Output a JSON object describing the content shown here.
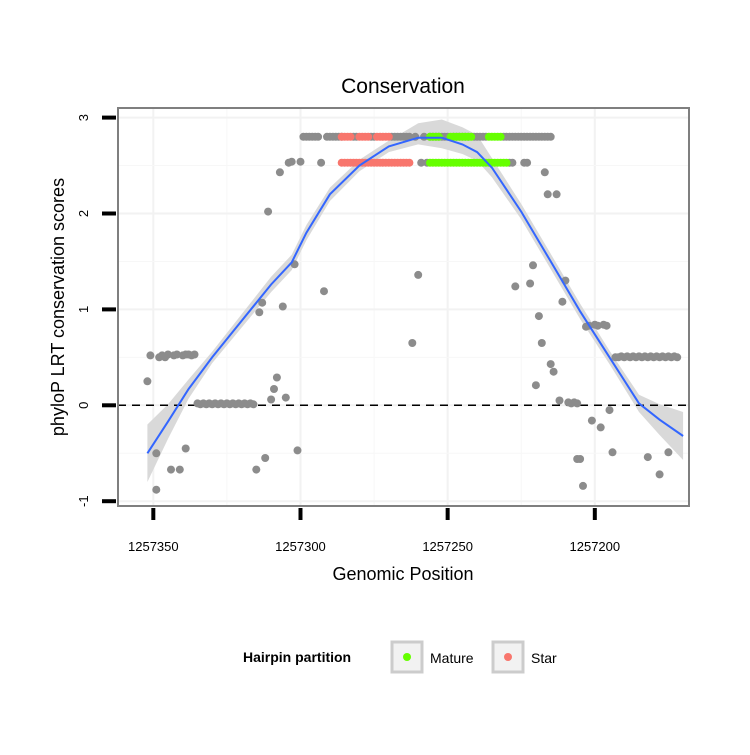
{
  "chart_data": {
    "type": "scatter",
    "title": "Conservation",
    "xlabel": "Genomic Position",
    "ylabel": "phyloP LRT conservation scores",
    "x_reversed": true,
    "xlim": [
      1257362,
      1257168
    ],
    "ylim": [
      -1.05,
      3.1
    ],
    "x_ticks": [
      1257350,
      1257300,
      1257250,
      1257200
    ],
    "x_tick_labels": [
      "1257350",
      "1257300",
      "1257250",
      "1257200"
    ],
    "y_ticks": [
      -1,
      0,
      1,
      2,
      3
    ],
    "y_tick_labels": [
      "-1",
      "0",
      "1",
      "2",
      "3"
    ],
    "grid": true,
    "reference_line": {
      "y": 0,
      "style": "dashed"
    },
    "legend": {
      "title": "Hairpin partition",
      "position": "bottom",
      "entries": [
        {
          "label": "Mature",
          "color": "#66ff00"
        },
        {
          "label": "Star",
          "color": "#f8766d"
        }
      ]
    },
    "colors": {
      "other": "#8c8c8c",
      "mature": "#66ff00",
      "star": "#f8766d",
      "smooth": "#3366ff",
      "ribbon": "#d9d9d9",
      "panel_border": "#7f7f7f"
    },
    "series": [
      {
        "key": "other",
        "points": [
          [
            1257352,
            0.25
          ],
          [
            1257351,
            0.52
          ],
          [
            1257349,
            -0.88
          ],
          [
            1257349,
            -0.5
          ],
          [
            1257348,
            0.5
          ],
          [
            1257347,
            0.52
          ],
          [
            1257346,
            0.5
          ],
          [
            1257345,
            0.53
          ],
          [
            1257344,
            -0.67
          ],
          [
            1257343,
            0.52
          ],
          [
            1257342,
            0.53
          ],
          [
            1257341,
            -0.67
          ],
          [
            1257340,
            0.52
          ],
          [
            1257339,
            0.53
          ],
          [
            1257338,
            0.53
          ],
          [
            1257339,
            -0.45
          ],
          [
            1257337,
            0.52
          ],
          [
            1257336,
            0.53
          ],
          [
            1257335,
            0.02
          ],
          [
            1257334,
            0.01
          ],
          [
            1257333,
            0.02
          ],
          [
            1257332,
            0.01
          ],
          [
            1257331,
            0.02
          ],
          [
            1257330,
            0.01
          ],
          [
            1257329,
            0.02
          ],
          [
            1257328,
            0.01
          ],
          [
            1257327,
            0.02
          ],
          [
            1257326,
            0.01
          ],
          [
            1257325,
            0.02
          ],
          [
            1257324,
            0.01
          ],
          [
            1257323,
            0.02
          ],
          [
            1257322,
            0.01
          ],
          [
            1257321,
            0.02
          ],
          [
            1257320,
            0.01
          ],
          [
            1257319,
            0.02
          ],
          [
            1257318,
            0.01
          ],
          [
            1257317,
            0.02
          ],
          [
            1257316,
            0.01
          ],
          [
            1257315,
            -0.67
          ],
          [
            1257314,
            0.97
          ],
          [
            1257313,
            1.07
          ],
          [
            1257312,
            -0.55
          ],
          [
            1257311,
            2.02
          ],
          [
            1257310,
            0.06
          ],
          [
            1257309,
            0.17
          ],
          [
            1257308,
            0.29
          ],
          [
            1257307,
            2.43
          ],
          [
            1257306,
            1.03
          ],
          [
            1257305,
            0.08
          ],
          [
            1257304,
            2.53
          ],
          [
            1257303,
            2.54
          ],
          [
            1257302,
            1.47
          ],
          [
            1257301,
            -0.47
          ],
          [
            1257300,
            2.54
          ],
          [
            1257299,
            2.8
          ],
          [
            1257298,
            2.8
          ],
          [
            1257297,
            2.8
          ],
          [
            1257296,
            2.8
          ],
          [
            1257295,
            2.8
          ],
          [
            1257294,
            2.8
          ],
          [
            1257293,
            2.53
          ],
          [
            1257292,
            1.19
          ],
          [
            1257291,
            2.8
          ],
          [
            1257290,
            2.8
          ],
          [
            1257289,
            2.8
          ],
          [
            1257288,
            2.8
          ],
          [
            1257287,
            2.8
          ],
          [
            1257286,
            2.8
          ],
          [
            1257282,
            2.8
          ],
          [
            1257281,
            2.8
          ],
          [
            1257276,
            2.8
          ],
          [
            1257275,
            2.8
          ],
          [
            1257269,
            2.8
          ],
          [
            1257268,
            2.8
          ],
          [
            1257267,
            2.8
          ],
          [
            1257266,
            2.8
          ],
          [
            1257265,
            2.8
          ],
          [
            1257264,
            2.8
          ],
          [
            1257263,
            2.8
          ],
          [
            1257262,
            0.65
          ],
          [
            1257261,
            2.8
          ],
          [
            1257260,
            1.36
          ],
          [
            1257259,
            2.53
          ],
          [
            1257258,
            2.8
          ],
          [
            1257257,
            2.53
          ],
          [
            1257256,
            2.8
          ],
          [
            1257255,
            2.8
          ],
          [
            1257254,
            2.8
          ],
          [
            1257253,
            2.8
          ],
          [
            1257252,
            2.8
          ],
          [
            1257251,
            2.8
          ],
          [
            1257250,
            2.8
          ],
          [
            1257248,
            2.8
          ],
          [
            1257247,
            2.8
          ],
          [
            1257246,
            2.8
          ],
          [
            1257245,
            2.8
          ],
          [
            1257244,
            2.8
          ],
          [
            1257243,
            2.8
          ],
          [
            1257241,
            2.8
          ],
          [
            1257240,
            2.8
          ],
          [
            1257239,
            2.8
          ],
          [
            1257238,
            2.8
          ],
          [
            1257237,
            2.8
          ],
          [
            1257231,
            2.8
          ],
          [
            1257230,
            2.8
          ],
          [
            1257229,
            2.8
          ],
          [
            1257228,
            2.8
          ],
          [
            1257227,
            2.8
          ],
          [
            1257226,
            2.8
          ],
          [
            1257225,
            2.8
          ],
          [
            1257224,
            2.8
          ],
          [
            1257223,
            2.8
          ],
          [
            1257222,
            2.8
          ],
          [
            1257221,
            2.8
          ],
          [
            1257220,
            2.8
          ],
          [
            1257219,
            2.8
          ],
          [
            1257218,
            2.8
          ],
          [
            1257217,
            2.8
          ],
          [
            1257216,
            2.8
          ],
          [
            1257215,
            2.8
          ],
          [
            1257229,
            2.53
          ],
          [
            1257228,
            2.53
          ],
          [
            1257227,
            1.24
          ],
          [
            1257224,
            2.53
          ],
          [
            1257223,
            2.53
          ],
          [
            1257222,
            1.27
          ],
          [
            1257221,
            1.46
          ],
          [
            1257220,
            0.21
          ],
          [
            1257219,
            0.93
          ],
          [
            1257218,
            0.65
          ],
          [
            1257217,
            2.43
          ],
          [
            1257216,
            2.2
          ],
          [
            1257215,
            0.43
          ],
          [
            1257214,
            0.35
          ],
          [
            1257213,
            2.2
          ],
          [
            1257212,
            0.05
          ],
          [
            1257211,
            1.08
          ],
          [
            1257210,
            1.3
          ],
          [
            1257209,
            0.03
          ],
          [
            1257208,
            0.02
          ],
          [
            1257207,
            0.03
          ],
          [
            1257206,
            0.02
          ],
          [
            1257206,
            -0.56
          ],
          [
            1257205,
            -0.56
          ],
          [
            1257204,
            -0.84
          ],
          [
            1257203,
            0.82
          ],
          [
            1257202,
            0.83
          ],
          [
            1257201,
            -0.16
          ],
          [
            1257200,
            0.84
          ],
          [
            1257199,
            0.83
          ],
          [
            1257198,
            -0.23
          ],
          [
            1257197,
            0.84
          ],
          [
            1257196,
            0.83
          ],
          [
            1257195,
            -0.05
          ],
          [
            1257194,
            -0.49
          ],
          [
            1257193,
            0.5
          ],
          [
            1257192,
            0.5
          ],
          [
            1257191,
            0.51
          ],
          [
            1257190,
            0.5
          ],
          [
            1257189,
            0.51
          ],
          [
            1257188,
            0.5
          ],
          [
            1257187,
            0.51
          ],
          [
            1257186,
            0.5
          ],
          [
            1257185,
            0.51
          ],
          [
            1257184,
            0.5
          ],
          [
            1257183,
            0.51
          ],
          [
            1257182,
            0.5
          ],
          [
            1257181,
            0.51
          ],
          [
            1257180,
            0.5
          ],
          [
            1257179,
            0.51
          ],
          [
            1257178,
            0.5
          ],
          [
            1257177,
            0.51
          ],
          [
            1257176,
            0.5
          ],
          [
            1257175,
            0.51
          ],
          [
            1257174,
            0.5
          ],
          [
            1257173,
            0.51
          ],
          [
            1257172,
            0.5
          ],
          [
            1257182,
            -0.54
          ],
          [
            1257178,
            -0.72
          ],
          [
            1257175,
            -0.49
          ]
        ]
      },
      {
        "key": "star",
        "points": [
          [
            1257286,
            2.8
          ],
          [
            1257285,
            2.8
          ],
          [
            1257284,
            2.8
          ],
          [
            1257283,
            2.8
          ],
          [
            1257280,
            2.8
          ],
          [
            1257279,
            2.8
          ],
          [
            1257278,
            2.8
          ],
          [
            1257277,
            2.8
          ],
          [
            1257274,
            2.8
          ],
          [
            1257273,
            2.8
          ],
          [
            1257272,
            2.8
          ],
          [
            1257271,
            2.8
          ],
          [
            1257270,
            2.8
          ],
          [
            1257286,
            2.53
          ],
          [
            1257285,
            2.53
          ],
          [
            1257284,
            2.53
          ],
          [
            1257283,
            2.53
          ],
          [
            1257282,
            2.53
          ],
          [
            1257281,
            2.53
          ],
          [
            1257280,
            2.53
          ],
          [
            1257279,
            2.53
          ],
          [
            1257278,
            2.53
          ],
          [
            1257277,
            2.53
          ],
          [
            1257276,
            2.53
          ],
          [
            1257275,
            2.53
          ],
          [
            1257274,
            2.53
          ],
          [
            1257273,
            2.53
          ],
          [
            1257272,
            2.53
          ],
          [
            1257271,
            2.53
          ],
          [
            1257270,
            2.53
          ],
          [
            1257269,
            2.53
          ],
          [
            1257268,
            2.53
          ],
          [
            1257267,
            2.53
          ],
          [
            1257266,
            2.53
          ],
          [
            1257265,
            2.53
          ],
          [
            1257264,
            2.53
          ],
          [
            1257263,
            2.53
          ]
        ]
      },
      {
        "key": "mature",
        "points": [
          [
            1257256,
            2.8
          ],
          [
            1257255,
            2.8
          ],
          [
            1257254,
            2.8
          ],
          [
            1257253,
            2.8
          ],
          [
            1257249,
            2.8
          ],
          [
            1257248,
            2.8
          ],
          [
            1257247,
            2.8
          ],
          [
            1257246,
            2.8
          ],
          [
            1257245,
            2.8
          ],
          [
            1257244,
            2.8
          ],
          [
            1257243,
            2.8
          ],
          [
            1257242,
            2.8
          ],
          [
            1257236,
            2.8
          ],
          [
            1257235,
            2.8
          ],
          [
            1257234,
            2.8
          ],
          [
            1257233,
            2.8
          ],
          [
            1257232,
            2.8
          ],
          [
            1257256,
            2.53
          ],
          [
            1257255,
            2.53
          ],
          [
            1257254,
            2.53
          ],
          [
            1257253,
            2.53
          ],
          [
            1257252,
            2.53
          ],
          [
            1257251,
            2.53
          ],
          [
            1257250,
            2.53
          ],
          [
            1257249,
            2.53
          ],
          [
            1257248,
            2.53
          ],
          [
            1257247,
            2.53
          ],
          [
            1257246,
            2.53
          ],
          [
            1257245,
            2.53
          ],
          [
            1257244,
            2.53
          ],
          [
            1257243,
            2.53
          ],
          [
            1257242,
            2.53
          ],
          [
            1257241,
            2.53
          ],
          [
            1257240,
            2.53
          ],
          [
            1257239,
            2.53
          ],
          [
            1257238,
            2.53
          ],
          [
            1257237,
            2.53
          ],
          [
            1257236,
            2.53
          ],
          [
            1257235,
            2.53
          ],
          [
            1257234,
            2.53
          ],
          [
            1257233,
            2.53
          ],
          [
            1257232,
            2.53
          ],
          [
            1257231,
            2.53
          ],
          [
            1257230,
            2.53
          ]
        ]
      }
    ],
    "smooth_curve": {
      "x": [
        1257352,
        1257345,
        1257338,
        1257330,
        1257320,
        1257310,
        1257303,
        1257298,
        1257290,
        1257280,
        1257270,
        1257260,
        1257252,
        1257245,
        1257240,
        1257235,
        1257225,
        1257215,
        1257205,
        1257195,
        1257185,
        1257178,
        1257170
      ],
      "y": [
        -0.5,
        -0.17,
        0.17,
        0.5,
        0.88,
        1.26,
        1.49,
        1.8,
        2.2,
        2.5,
        2.7,
        2.79,
        2.79,
        2.72,
        2.64,
        2.48,
        2.02,
        1.5,
        0.98,
        0.5,
        0.02,
        -0.15,
        -0.32
      ],
      "lower": [
        -0.8,
        -0.35,
        0.07,
        0.44,
        0.81,
        1.18,
        1.41,
        1.72,
        2.13,
        2.44,
        2.64,
        2.72,
        2.68,
        2.62,
        2.55,
        2.38,
        1.94,
        1.42,
        0.9,
        0.43,
        -0.07,
        -0.31,
        -0.57
      ],
      "upper": [
        -0.2,
        0.01,
        0.27,
        0.56,
        0.95,
        1.34,
        1.57,
        1.88,
        2.27,
        2.56,
        2.76,
        2.94,
        2.98,
        2.9,
        2.82,
        2.58,
        2.1,
        1.58,
        1.06,
        0.57,
        0.11,
        0.01,
        -0.07
      ]
    }
  }
}
